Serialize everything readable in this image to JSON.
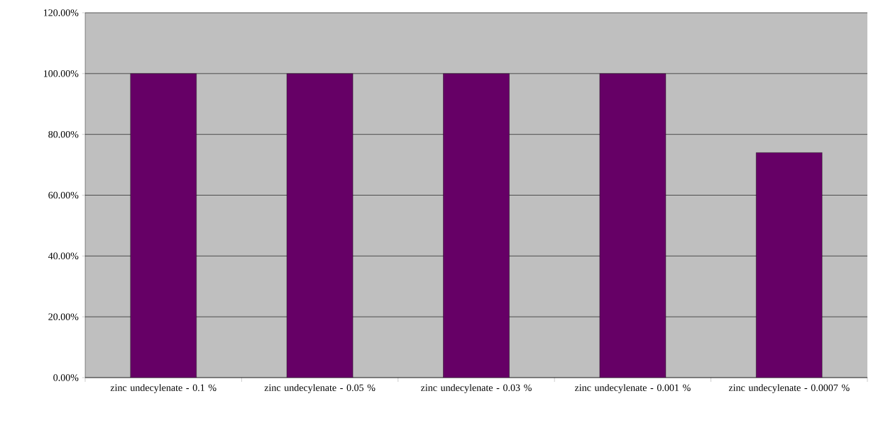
{
  "chart_data": {
    "type": "bar",
    "categories": [
      "zinc undecylenate - 0.1 %",
      "zinc undecylenate - 0.05 %",
      "zinc undecylenate - 0.03 %",
      "zinc undecylenate - 0.001 %",
      "zinc undecylenate - 0.0007 %"
    ],
    "values": [
      100,
      100,
      100,
      100,
      74
    ],
    "color": "#660066",
    "ylim": [
      0,
      120
    ],
    "yticks": [
      {
        "value": 0,
        "label": "0.00%"
      },
      {
        "value": 20,
        "label": "20.00%"
      },
      {
        "value": 40,
        "label": "40.00%"
      },
      {
        "value": 60,
        "label": "60.00%"
      },
      {
        "value": 80,
        "label": "80.00%"
      },
      {
        "value": 100,
        "label": "100.00%"
      },
      {
        "value": 120,
        "label": "120.00%"
      }
    ],
    "grid": "y"
  }
}
